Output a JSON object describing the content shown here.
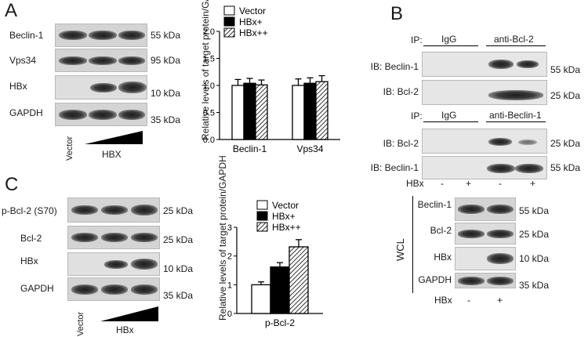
{
  "panels": {
    "A": {
      "letter": "A",
      "blot_labels": [
        "Beclin-1",
        "Vps34",
        "HBx",
        "GAPDH"
      ],
      "kda_labels": [
        "55 kDa",
        "95 kDa",
        "10 kDa",
        "35 kDa"
      ],
      "lane_label": "Vector",
      "hbx_label": "HBX"
    },
    "B": {
      "letter": "B",
      "ip_label": "IP:",
      "ip1_lanes": [
        "IgG",
        "anti-Bcl-2"
      ],
      "ip1_rows": [
        "IB: Beclin-1",
        "IB: Bcl-2"
      ],
      "ip1_kda": [
        "55 kDa",
        "25 kDa"
      ],
      "ip2_lanes": [
        "IgG",
        "anti-Beclin-1"
      ],
      "ip2_rows": [
        "IB: Bcl-2",
        "IB: Beclin-1"
      ],
      "ip2_kda": [
        "25 kDa",
        "55 kDa"
      ],
      "hbx_row_label": "HBx",
      "hbx_signs": [
        "-",
        "+",
        "-",
        "+"
      ],
      "wcl_label": "WCL",
      "wcl_rows": [
        "Beclin-1",
        "Bcl-2",
        "HBx",
        "GAPDH"
      ],
      "wcl_kda": [
        "55 kDa",
        "25 kDa",
        "10 kDa",
        "35 kDa"
      ],
      "wcl_hbx_label": "HBx",
      "wcl_hbx_signs": [
        "-",
        "+"
      ]
    },
    "C": {
      "letter": "C",
      "blot_labels": [
        "p-Bcl-2 (S70)",
        "Bcl-2",
        "HBx",
        "GAPDH"
      ],
      "kda_labels": [
        "25 kDa",
        "25 kDa",
        "10 kDa",
        "35 kDa"
      ],
      "lane_label": "Vector",
      "hbx_label": "HBx"
    }
  },
  "chart_data": [
    {
      "type": "bar",
      "panel": "A",
      "ylabel": "Relative levels of target protein/GAPDH",
      "ylim": [
        0,
        2.0
      ],
      "yticks": [
        "0.0",
        "0.5",
        "1.0",
        "1.5",
        "2.0"
      ],
      "categories": [
        "Beclin-1",
        "Vps34"
      ],
      "series": [
        {
          "name": "Vector",
          "values": [
            1.0,
            1.0
          ],
          "errors": [
            0.11,
            0.12
          ],
          "fill": "white"
        },
        {
          "name": "HBx+",
          "values": [
            1.04,
            1.04
          ],
          "errors": [
            0.09,
            0.1
          ],
          "fill": "black"
        },
        {
          "name": "HBx++",
          "values": [
            1.01,
            1.07
          ],
          "errors": [
            0.09,
            0.11
          ],
          "fill": "hatch"
        }
      ],
      "legend": "top"
    },
    {
      "type": "bar",
      "panel": "C",
      "ylabel": "Relative levels of target protein/GAPDH",
      "ylim": [
        0,
        3
      ],
      "yticks": [
        "0",
        "1",
        "2",
        "3"
      ],
      "categories": [
        "p-Bcl-2"
      ],
      "series": [
        {
          "name": "Vector",
          "values": [
            1.0
          ],
          "errors": [
            0.1
          ],
          "fill": "white"
        },
        {
          "name": "HBx+",
          "values": [
            1.62
          ],
          "errors": [
            0.15
          ],
          "fill": "black"
        },
        {
          "name": "HBx++",
          "values": [
            2.32
          ],
          "errors": [
            0.25
          ],
          "fill": "hatch"
        }
      ],
      "legend": "top"
    }
  ]
}
